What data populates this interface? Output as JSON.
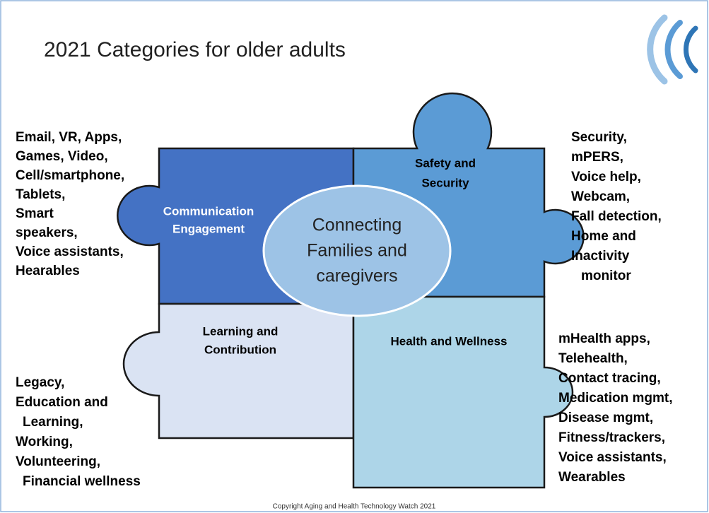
{
  "title": "2021 Categories for older adults",
  "pieces": [
    {
      "label": [
        "Communication",
        "Engagement"
      ]
    },
    {
      "label": [
        "Safety and",
        "Security"
      ]
    },
    {
      "label": [
        "Learning and",
        "Contribution"
      ]
    },
    {
      "label": [
        "Health and Wellness"
      ]
    }
  ],
  "center": [
    "Connecting",
    "Families and",
    "caregivers"
  ],
  "lists": [
    {
      "items": [
        "Email, VR, Apps,",
        "Games, Video,",
        "Cell/smartphone,",
        "Tablets,",
        "Smart",
        "speakers,",
        "Voice assistants,",
        "Hearables"
      ]
    },
    {
      "items": [
        "Security,",
        "mPERS,",
        "Voice help,",
        "Webcam,",
        "Fall detection,",
        "Home and",
        "Inactivity",
        "monitor"
      ]
    },
    {
      "items": [
        "Legacy,",
        "Education and",
        "Learning,",
        "Working,",
        "Volunteering,",
        "Financial wellness"
      ]
    },
    {
      "items": [
        "mHealth apps,",
        "Telehealth,",
        "Contact tracing,",
        "Medication mgmt,",
        "Disease mgmt,",
        "Fitness/trackers,",
        "Voice assistants,",
        "Wearables"
      ]
    }
  ],
  "footer": "Copyright Aging and Health Technology Watch 2021"
}
